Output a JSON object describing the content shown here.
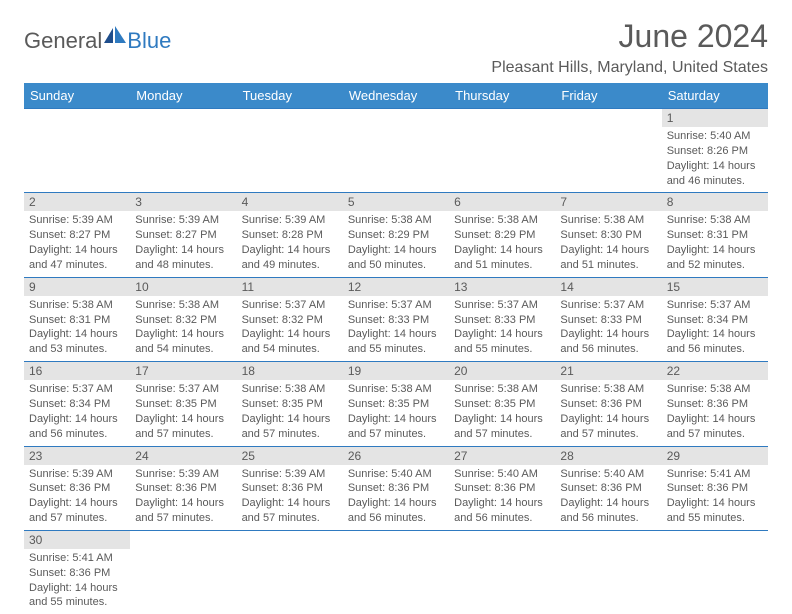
{
  "logo": {
    "part1": "General",
    "part2": "Blue"
  },
  "title": {
    "month_year": "June 2024",
    "location": "Pleasant Hills, Maryland, United States"
  },
  "colors": {
    "header_bg": "#3b8aca",
    "border": "#2f7ac0",
    "daynum_bg": "#e4e4e4",
    "text": "#5a5a5a",
    "white": "#ffffff"
  },
  "layout": {
    "columns": 7,
    "rows": 6,
    "first_weekday_index": 6
  },
  "weekdays": [
    "Sunday",
    "Monday",
    "Tuesday",
    "Wednesday",
    "Thursday",
    "Friday",
    "Saturday"
  ],
  "days": [
    {
      "n": 1,
      "sunrise": "5:40 AM",
      "sunset": "8:26 PM",
      "daylight": "14 hours and 46 minutes."
    },
    {
      "n": 2,
      "sunrise": "5:39 AM",
      "sunset": "8:27 PM",
      "daylight": "14 hours and 47 minutes."
    },
    {
      "n": 3,
      "sunrise": "5:39 AM",
      "sunset": "8:27 PM",
      "daylight": "14 hours and 48 minutes."
    },
    {
      "n": 4,
      "sunrise": "5:39 AM",
      "sunset": "8:28 PM",
      "daylight": "14 hours and 49 minutes."
    },
    {
      "n": 5,
      "sunrise": "5:38 AM",
      "sunset": "8:29 PM",
      "daylight": "14 hours and 50 minutes."
    },
    {
      "n": 6,
      "sunrise": "5:38 AM",
      "sunset": "8:29 PM",
      "daylight": "14 hours and 51 minutes."
    },
    {
      "n": 7,
      "sunrise": "5:38 AM",
      "sunset": "8:30 PM",
      "daylight": "14 hours and 51 minutes."
    },
    {
      "n": 8,
      "sunrise": "5:38 AM",
      "sunset": "8:31 PM",
      "daylight": "14 hours and 52 minutes."
    },
    {
      "n": 9,
      "sunrise": "5:38 AM",
      "sunset": "8:31 PM",
      "daylight": "14 hours and 53 minutes."
    },
    {
      "n": 10,
      "sunrise": "5:38 AM",
      "sunset": "8:32 PM",
      "daylight": "14 hours and 54 minutes."
    },
    {
      "n": 11,
      "sunrise": "5:37 AM",
      "sunset": "8:32 PM",
      "daylight": "14 hours and 54 minutes."
    },
    {
      "n": 12,
      "sunrise": "5:37 AM",
      "sunset": "8:33 PM",
      "daylight": "14 hours and 55 minutes."
    },
    {
      "n": 13,
      "sunrise": "5:37 AM",
      "sunset": "8:33 PM",
      "daylight": "14 hours and 55 minutes."
    },
    {
      "n": 14,
      "sunrise": "5:37 AM",
      "sunset": "8:33 PM",
      "daylight": "14 hours and 56 minutes."
    },
    {
      "n": 15,
      "sunrise": "5:37 AM",
      "sunset": "8:34 PM",
      "daylight": "14 hours and 56 minutes."
    },
    {
      "n": 16,
      "sunrise": "5:37 AM",
      "sunset": "8:34 PM",
      "daylight": "14 hours and 56 minutes."
    },
    {
      "n": 17,
      "sunrise": "5:37 AM",
      "sunset": "8:35 PM",
      "daylight": "14 hours and 57 minutes."
    },
    {
      "n": 18,
      "sunrise": "5:38 AM",
      "sunset": "8:35 PM",
      "daylight": "14 hours and 57 minutes."
    },
    {
      "n": 19,
      "sunrise": "5:38 AM",
      "sunset": "8:35 PM",
      "daylight": "14 hours and 57 minutes."
    },
    {
      "n": 20,
      "sunrise": "5:38 AM",
      "sunset": "8:35 PM",
      "daylight": "14 hours and 57 minutes."
    },
    {
      "n": 21,
      "sunrise": "5:38 AM",
      "sunset": "8:36 PM",
      "daylight": "14 hours and 57 minutes."
    },
    {
      "n": 22,
      "sunrise": "5:38 AM",
      "sunset": "8:36 PM",
      "daylight": "14 hours and 57 minutes."
    },
    {
      "n": 23,
      "sunrise": "5:39 AM",
      "sunset": "8:36 PM",
      "daylight": "14 hours and 57 minutes."
    },
    {
      "n": 24,
      "sunrise": "5:39 AM",
      "sunset": "8:36 PM",
      "daylight": "14 hours and 57 minutes."
    },
    {
      "n": 25,
      "sunrise": "5:39 AM",
      "sunset": "8:36 PM",
      "daylight": "14 hours and 57 minutes."
    },
    {
      "n": 26,
      "sunrise": "5:40 AM",
      "sunset": "8:36 PM",
      "daylight": "14 hours and 56 minutes."
    },
    {
      "n": 27,
      "sunrise": "5:40 AM",
      "sunset": "8:36 PM",
      "daylight": "14 hours and 56 minutes."
    },
    {
      "n": 28,
      "sunrise": "5:40 AM",
      "sunset": "8:36 PM",
      "daylight": "14 hours and 56 minutes."
    },
    {
      "n": 29,
      "sunrise": "5:41 AM",
      "sunset": "8:36 PM",
      "daylight": "14 hours and 55 minutes."
    },
    {
      "n": 30,
      "sunrise": "5:41 AM",
      "sunset": "8:36 PM",
      "daylight": "14 hours and 55 minutes."
    }
  ],
  "labels": {
    "sunrise": "Sunrise:",
    "sunset": "Sunset:",
    "daylight": "Daylight:"
  }
}
